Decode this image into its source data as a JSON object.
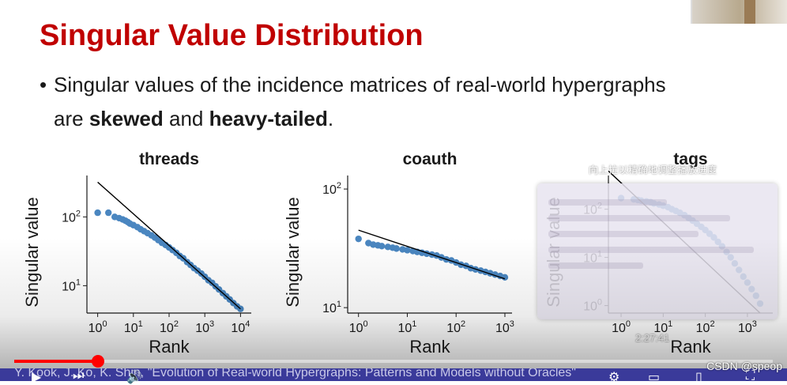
{
  "slide": {
    "title": "Singular Value Distribution",
    "bullet_prefix": "Singular values of the incidence matrices of real-world hypergraphs",
    "bullet_are": "are ",
    "bullet_skewed": "skewed",
    "bullet_and": " and ",
    "bullet_heavy": "heavy-tailed",
    "bullet_end": "."
  },
  "colors": {
    "title": "#c00000",
    "points": "#4a86c0",
    "fit_line": "#000000",
    "progress": "#ff0000",
    "citation_bar": "#3a3a9a"
  },
  "chart_data": [
    {
      "type": "scatter",
      "title": "threads",
      "xlabel": "Rank",
      "ylabel": "Singular value",
      "xscale": "log",
      "yscale": "log",
      "xlim": [
        0.5,
        20000
      ],
      "ylim": [
        4,
        400
      ],
      "xticks": [
        1,
        10,
        100,
        1000,
        10000
      ],
      "xtick_labels": [
        "10^0",
        "10^1",
        "10^2",
        "10^3",
        "10^4"
      ],
      "yticks": [
        10,
        100
      ],
      "ytick_labels": [
        "10^1",
        "10^2"
      ],
      "points": [
        [
          1,
          115
        ],
        [
          2,
          115
        ],
        [
          3,
          100
        ],
        [
          4,
          96
        ],
        [
          5,
          92
        ],
        [
          6,
          88
        ],
        [
          7,
          84
        ],
        [
          8,
          80
        ],
        [
          10,
          76
        ],
        [
          13,
          71
        ],
        [
          16,
          66
        ],
        [
          20,
          62
        ],
        [
          25,
          58
        ],
        [
          32,
          54
        ],
        [
          40,
          50
        ],
        [
          50,
          46
        ],
        [
          63,
          42
        ],
        [
          80,
          39
        ],
        [
          100,
          36
        ],
        [
          125,
          33
        ],
        [
          160,
          30
        ],
        [
          200,
          27
        ],
        [
          250,
          25
        ],
        [
          320,
          22
        ],
        [
          400,
          20
        ],
        [
          500,
          18
        ],
        [
          630,
          16.5
        ],
        [
          800,
          15
        ],
        [
          1000,
          13.5
        ],
        [
          1260,
          12
        ],
        [
          1600,
          11
        ],
        [
          2000,
          9.8
        ],
        [
          2500,
          8.8
        ],
        [
          3200,
          7.8
        ],
        [
          4000,
          7
        ],
        [
          5000,
          6.3
        ],
        [
          6300,
          5.6
        ],
        [
          8000,
          5
        ],
        [
          10000,
          4.6
        ]
      ],
      "fit_line": [
        [
          1,
          320
        ],
        [
          10000,
          4.6
        ]
      ]
    },
    {
      "type": "scatter",
      "title": "coauth",
      "xlabel": "Rank",
      "ylabel": "Singular value",
      "xscale": "log",
      "yscale": "log",
      "xlim": [
        0.6,
        1400
      ],
      "ylim": [
        9,
        130
      ],
      "xticks": [
        1,
        10,
        100,
        1000
      ],
      "xtick_labels": [
        "10^0",
        "10^1",
        "10^2",
        "10^3"
      ],
      "yticks": [
        10,
        100
      ],
      "ytick_labels": [
        "10^1",
        "10^2"
      ],
      "points": [
        [
          1,
          38
        ],
        [
          1.6,
          35
        ],
        [
          2,
          34
        ],
        [
          2.5,
          33.5
        ],
        [
          3,
          33
        ],
        [
          4,
          32.5
        ],
        [
          5,
          32
        ],
        [
          6,
          31.5
        ],
        [
          8,
          31
        ],
        [
          10,
          30.5
        ],
        [
          13,
          30
        ],
        [
          16,
          29.5
        ],
        [
          20,
          29
        ],
        [
          25,
          28.5
        ],
        [
          32,
          28
        ],
        [
          40,
          27.5
        ],
        [
          50,
          26.5
        ],
        [
          63,
          25.5
        ],
        [
          80,
          25
        ],
        [
          100,
          24
        ],
        [
          126,
          23
        ],
        [
          160,
          22.5
        ],
        [
          200,
          21.5
        ],
        [
          250,
          21
        ],
        [
          320,
          20.5
        ],
        [
          400,
          20
        ],
        [
          500,
          19.5
        ],
        [
          630,
          19
        ],
        [
          800,
          18.5
        ],
        [
          1000,
          18
        ]
      ],
      "fit_line": [
        [
          1,
          45
        ],
        [
          1000,
          17.5
        ]
      ]
    },
    {
      "type": "scatter",
      "title": "tags",
      "xlabel": "Rank",
      "ylabel": "Singular value",
      "xscale": "log",
      "yscale": "log",
      "xlim": [
        0.5,
        4000
      ],
      "ylim": [
        0.7,
        500
      ],
      "xticks": [
        1,
        10,
        100,
        1000
      ],
      "xtick_labels": [
        "10^0",
        "10^1",
        "10^2",
        "10^3"
      ],
      "yticks": [
        1,
        10,
        100
      ],
      "ytick_labels": [
        "10^0",
        "10^1",
        "10^2"
      ],
      "points": [
        [
          1,
          170
        ],
        [
          2,
          160
        ],
        [
          2.5,
          155
        ],
        [
          3,
          150
        ],
        [
          4,
          145
        ],
        [
          5,
          140
        ],
        [
          6,
          132
        ],
        [
          8,
          125
        ],
        [
          10,
          118
        ],
        [
          13,
          110
        ],
        [
          16,
          100
        ],
        [
          20,
          92
        ],
        [
          25,
          84
        ],
        [
          32,
          75
        ],
        [
          40,
          66
        ],
        [
          50,
          58
        ],
        [
          63,
          50
        ],
        [
          80,
          43
        ],
        [
          100,
          37
        ],
        [
          126,
          31
        ],
        [
          160,
          26
        ],
        [
          200,
          21
        ],
        [
          250,
          17
        ],
        [
          320,
          13
        ],
        [
          400,
          10
        ],
        [
          500,
          7.5
        ],
        [
          630,
          5.5
        ],
        [
          800,
          4
        ],
        [
          1000,
          3
        ],
        [
          1260,
          2.2
        ],
        [
          1600,
          1.6
        ],
        [
          2000,
          1.1
        ]
      ],
      "fit_line": [
        [
          0.5,
          620
        ],
        [
          2000,
          0.7
        ]
      ]
    }
  ],
  "player": {
    "tooltip": "向上拉以精确地调整播放进度",
    "time": "2:27:41",
    "progress_fraction": 0.11,
    "citation": "Y. Kook, J. Ko, K. Shin, \"Evolution of Real-world Hypergraphs: Patterns and Models without Oracles\"",
    "watermark": "CSDN @speop",
    "controls": [
      "play-icon",
      "next-icon",
      "volume-icon",
      "settings-icon",
      "miniplayer-icon",
      "theater-icon",
      "fullscreen-icon"
    ]
  }
}
